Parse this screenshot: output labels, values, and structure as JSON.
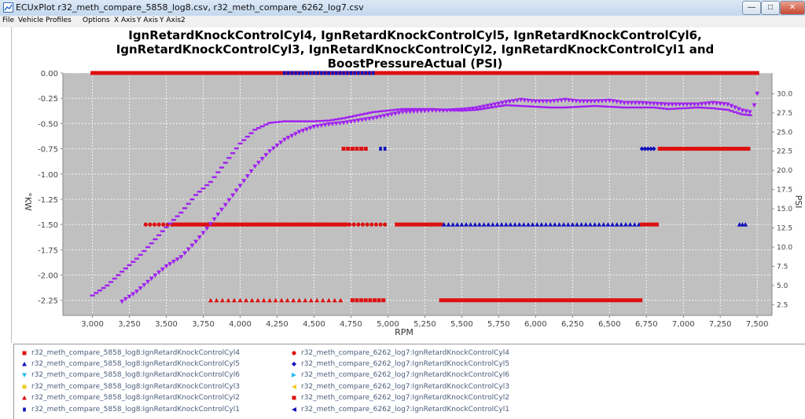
{
  "window": {
    "title": "ECUxPlot r32_meth_compare_5858_log8.csv, r32_meth_compare_6262_log7.csv",
    "buttons": {
      "minimize": "—",
      "maximize": "□",
      "close": "✕"
    }
  },
  "menu": {
    "items": [
      "File",
      "Vehicle Profiles",
      "Options",
      "X Axis",
      "Y Axis",
      "Y Axis2"
    ]
  },
  "legend": {
    "left": [
      {
        "label": "r32_meth_compare_5858_log8:IgnRetardKnockControlCyl4",
        "color": "#dd1111",
        "shape": "square"
      },
      {
        "label": "r32_meth_compare_5858_log8:IgnRetardKnockControlCyl5",
        "color": "#1111bb",
        "shape": "triangle"
      },
      {
        "label": "r32_meth_compare_5858_log8:IgnRetardKnockControlCyl6",
        "color": "#22bbee",
        "shape": "triangle-down"
      },
      {
        "label": "r32_meth_compare_5858_log8:IgnRetardKnockControlCyl3",
        "color": "#eecc22",
        "shape": "square"
      },
      {
        "label": "r32_meth_compare_5858_log8:IgnRetardKnockControlCyl2",
        "color": "#dd1111",
        "shape": "triangle"
      },
      {
        "label": "r32_meth_compare_5858_log8:IgnRetardKnockControlCyl1",
        "color": "#1111bb",
        "shape": "small-square"
      }
    ],
    "right": [
      {
        "label": "r32_meth_compare_6262_log7:IgnRetardKnockControlCyl4",
        "color": "#dd1111",
        "shape": "circle"
      },
      {
        "label": "r32_meth_compare_6262_log7:IgnRetardKnockControlCyl5",
        "color": "#1111bb",
        "shape": "diamond"
      },
      {
        "label": "r32_meth_compare_6262_log7:IgnRetardKnockControlCyl6",
        "color": "#22bbee",
        "shape": "triangle-right"
      },
      {
        "label": "r32_meth_compare_6262_log7:IgnRetardKnockControlCyl3",
        "color": "#eecc22",
        "shape": "triangle-left"
      },
      {
        "label": "r32_meth_compare_6262_log7:IgnRetardKnockControlCyl2",
        "color": "#dd1111",
        "shape": "square"
      },
      {
        "label": "r32_meth_compare_6262_log7:IgnRetardKnockControlCyl1",
        "color": "#1111bb",
        "shape": "triangle-left"
      }
    ]
  },
  "chart_data": {
    "type": "scatter",
    "title_lines": [
      "IgnRetardKnockControlCyl4, IgnRetardKnockControlCyl5, IgnRetardKnockControlCyl6,",
      "IgnRetardKnockControlCyl3, IgnRetardKnockControlCyl2, IgnRetardKnockControlCyl1 and",
      "BoostPressureActual (PSI)"
    ],
    "xlabel": "RPM",
    "ylabel": "°KW",
    "y2label": "PSI",
    "xlim": [
      2800,
      7600
    ],
    "ylim": [
      -2.4,
      0
    ],
    "y2lim": [
      1.1,
      32.7
    ],
    "xticks": [
      3000,
      3250,
      3500,
      3750,
      4000,
      4250,
      4500,
      4750,
      5000,
      5250,
      5500,
      5750,
      6000,
      6250,
      6500,
      6750,
      7000,
      7250,
      7500
    ],
    "xtick_labels": [
      "3,000",
      "3,250",
      "3,500",
      "3,750",
      "4,000",
      "4,250",
      "4,500",
      "4,750",
      "5,000",
      "5,250",
      "5,500",
      "5,750",
      "6,000",
      "6,250",
      "6,500",
      "6,750",
      "7,000",
      "7,250",
      "7,500"
    ],
    "yticks": [
      0,
      -0.25,
      -0.5,
      -0.75,
      -1,
      -1.25,
      -1.5,
      -1.75,
      -2,
      -2.25
    ],
    "ytick_labels": [
      "0.00",
      "-0.25",
      "-0.50",
      "-0.75",
      "-1.00",
      "-1.25",
      "-1.50",
      "-1.75",
      "-2.00",
      "-2.25"
    ],
    "y2ticks": [
      2.5,
      5,
      7.5,
      10,
      12.5,
      15,
      17.5,
      20,
      22.5,
      25,
      27.5,
      30
    ],
    "y2tick_labels": [
      "2.5",
      "5.0",
      "7.5",
      "10.0",
      "12.5",
      "15.0",
      "17.5",
      "20.0",
      "22.5",
      "25.0",
      "27.5",
      "30.0"
    ],
    "grid": true,
    "background": "#c0c0c0",
    "knock_segments": [
      {
        "log": "5858_log8",
        "cyl": "Cyl4",
        "marker": "square",
        "color": "#dd1111",
        "y": 0,
        "x_start": 3000,
        "x_end": 7500,
        "step": 25
      },
      {
        "log": "5858_log8",
        "cyl": "Cyl1",
        "marker": "small-square",
        "color": "#1111bb",
        "y": 0,
        "x_start": 4300,
        "x_end": 4900,
        "step": 25
      },
      {
        "log": "5858_log8",
        "cyl": "Cyl4",
        "marker": "square",
        "color": "#dd1111",
        "y": -0.75,
        "x_start": 4700,
        "x_end": 4850,
        "step": 30
      },
      {
        "log": "5858_log8",
        "cyl": "Cyl1",
        "marker": "small-square",
        "color": "#1111bb",
        "y": -0.75,
        "x_start": 4950,
        "x_end": 4990,
        "step": 30
      },
      {
        "log": "6262_log7",
        "cyl": "Cyl5",
        "marker": "diamond",
        "color": "#1111bb",
        "y": -0.75,
        "x_start": 6720,
        "x_end": 6800,
        "step": 20
      },
      {
        "log": "6262_log7",
        "cyl": "Cyl2",
        "marker": "square",
        "color": "#dd1111",
        "y": -0.75,
        "x_start": 6840,
        "x_end": 7440,
        "step": 20
      },
      {
        "log": "6262_log7",
        "cyl": "Cyl4",
        "marker": "circle",
        "color": "#dd1111",
        "y": -1.5,
        "x_start": 3360,
        "x_end": 4980,
        "step": 30
      },
      {
        "log": "5858_log8",
        "cyl": "Cyl4",
        "marker": "square",
        "color": "#dd1111",
        "y": -1.5,
        "x_start": 3540,
        "x_end": 4720,
        "step": 25
      },
      {
        "log": "5858_log8",
        "cyl": "Cyl4",
        "marker": "square",
        "color": "#dd1111",
        "y": -1.5,
        "x_start": 5060,
        "x_end": 5360,
        "step": 25
      },
      {
        "log": "5858_log8",
        "cyl": "Cyl5",
        "marker": "triangle",
        "color": "#1111bb",
        "y": -1.5,
        "x_start": 5380,
        "x_end": 6700,
        "step": 30
      },
      {
        "log": "6262_log7",
        "cyl": "Cyl2",
        "marker": "square",
        "color": "#dd1111",
        "y": -1.5,
        "x_start": 6720,
        "x_end": 6820,
        "step": 25
      },
      {
        "log": "5858_log8",
        "cyl": "Cyl5",
        "marker": "triangle",
        "color": "#1111bb",
        "y": -1.5,
        "x_start": 7380,
        "x_end": 7420,
        "step": 20
      },
      {
        "log": "5858_log8",
        "cyl": "Cyl2",
        "marker": "triangle",
        "color": "#dd1111",
        "y": -2.25,
        "x_start": 3800,
        "x_end": 4700,
        "step": 40
      },
      {
        "log": "5858_log8",
        "cyl": "Cyl4",
        "marker": "square",
        "color": "#dd1111",
        "y": -2.25,
        "x_start": 4760,
        "x_end": 4990,
        "step": 30
      },
      {
        "log": "6262_log7",
        "cyl": "Cyl2",
        "marker": "square",
        "color": "#dd1111",
        "y": -2.25,
        "x_start": 5360,
        "x_end": 6720,
        "step": 25
      }
    ],
    "boost_series": [
      {
        "name": "r32_meth_compare_5858_log8:BoostPressureActual",
        "marker": "dash",
        "color": "#a020f0",
        "points": [
          [
            3000,
            3.7
          ],
          [
            3100,
            5.0
          ],
          [
            3200,
            6.8
          ],
          [
            3300,
            8.5
          ],
          [
            3400,
            10.5
          ],
          [
            3500,
            12.6
          ],
          [
            3600,
            14.5
          ],
          [
            3700,
            16.8
          ],
          [
            3800,
            18.5
          ],
          [
            3900,
            21.0
          ],
          [
            4000,
            23.5
          ],
          [
            4100,
            25.3
          ],
          [
            4200,
            26.2
          ],
          [
            4300,
            26.4
          ],
          [
            4400,
            26.4
          ],
          [
            4500,
            26.4
          ],
          [
            4600,
            26.5
          ],
          [
            4700,
            26.8
          ],
          [
            4800,
            27.2
          ],
          [
            4900,
            27.6
          ],
          [
            5000,
            27.8
          ],
          [
            5100,
            28.0
          ],
          [
            5200,
            28.0
          ],
          [
            5300,
            28.0
          ],
          [
            5400,
            27.9
          ],
          [
            5500,
            27.8
          ],
          [
            5600,
            27.9
          ],
          [
            5700,
            28.2
          ],
          [
            5800,
            28.5
          ],
          [
            5900,
            28.4
          ],
          [
            6000,
            28.3
          ],
          [
            6100,
            28.2
          ],
          [
            6200,
            28.2
          ],
          [
            6300,
            28.3
          ],
          [
            6400,
            28.4
          ],
          [
            6500,
            28.3
          ],
          [
            6600,
            28.2
          ],
          [
            6700,
            28.2
          ],
          [
            6800,
            28.2
          ],
          [
            6900,
            28.0
          ],
          [
            7000,
            28.1
          ],
          [
            7100,
            28.2
          ],
          [
            7200,
            28.1
          ],
          [
            7300,
            27.9
          ],
          [
            7400,
            27.3
          ],
          [
            7450,
            27.2
          ]
        ]
      },
      {
        "name": "r32_meth_compare_6262_log7:BoostPressureActual",
        "marker": "triangle-down",
        "color": "#a020f0",
        "points": [
          [
            3200,
            2.9
          ],
          [
            3300,
            4.2
          ],
          [
            3400,
            5.9
          ],
          [
            3500,
            7.5
          ],
          [
            3600,
            8.7
          ],
          [
            3700,
            10.7
          ],
          [
            3800,
            13.0
          ],
          [
            3900,
            15.5
          ],
          [
            4000,
            18.0
          ],
          [
            4100,
            20.5
          ],
          [
            4200,
            22.5
          ],
          [
            4300,
            24.0
          ],
          [
            4400,
            25.0
          ],
          [
            4500,
            25.7
          ],
          [
            4600,
            26.0
          ],
          [
            4700,
            26.2
          ],
          [
            4800,
            26.5
          ],
          [
            4900,
            26.8
          ],
          [
            5000,
            27.2
          ],
          [
            5100,
            27.6
          ],
          [
            5200,
            27.7
          ],
          [
            5300,
            27.8
          ],
          [
            5400,
            27.8
          ],
          [
            5500,
            27.9
          ],
          [
            5600,
            28.1
          ],
          [
            5700,
            28.5
          ],
          [
            5800,
            28.9
          ],
          [
            5900,
            29.2
          ],
          [
            6000,
            29.0
          ],
          [
            6100,
            29.0
          ],
          [
            6200,
            29.2
          ],
          [
            6300,
            29.0
          ],
          [
            6400,
            29.0
          ],
          [
            6500,
            29.1
          ],
          [
            6600,
            28.8
          ],
          [
            6700,
            28.8
          ],
          [
            6800,
            28.7
          ],
          [
            6900,
            28.6
          ],
          [
            7000,
            28.6
          ],
          [
            7100,
            28.6
          ],
          [
            7200,
            28.8
          ],
          [
            7300,
            28.6
          ],
          [
            7400,
            27.8
          ],
          [
            7450,
            27.6
          ],
          [
            7480,
            28.5
          ],
          [
            7500,
            30.0
          ]
        ]
      }
    ]
  }
}
